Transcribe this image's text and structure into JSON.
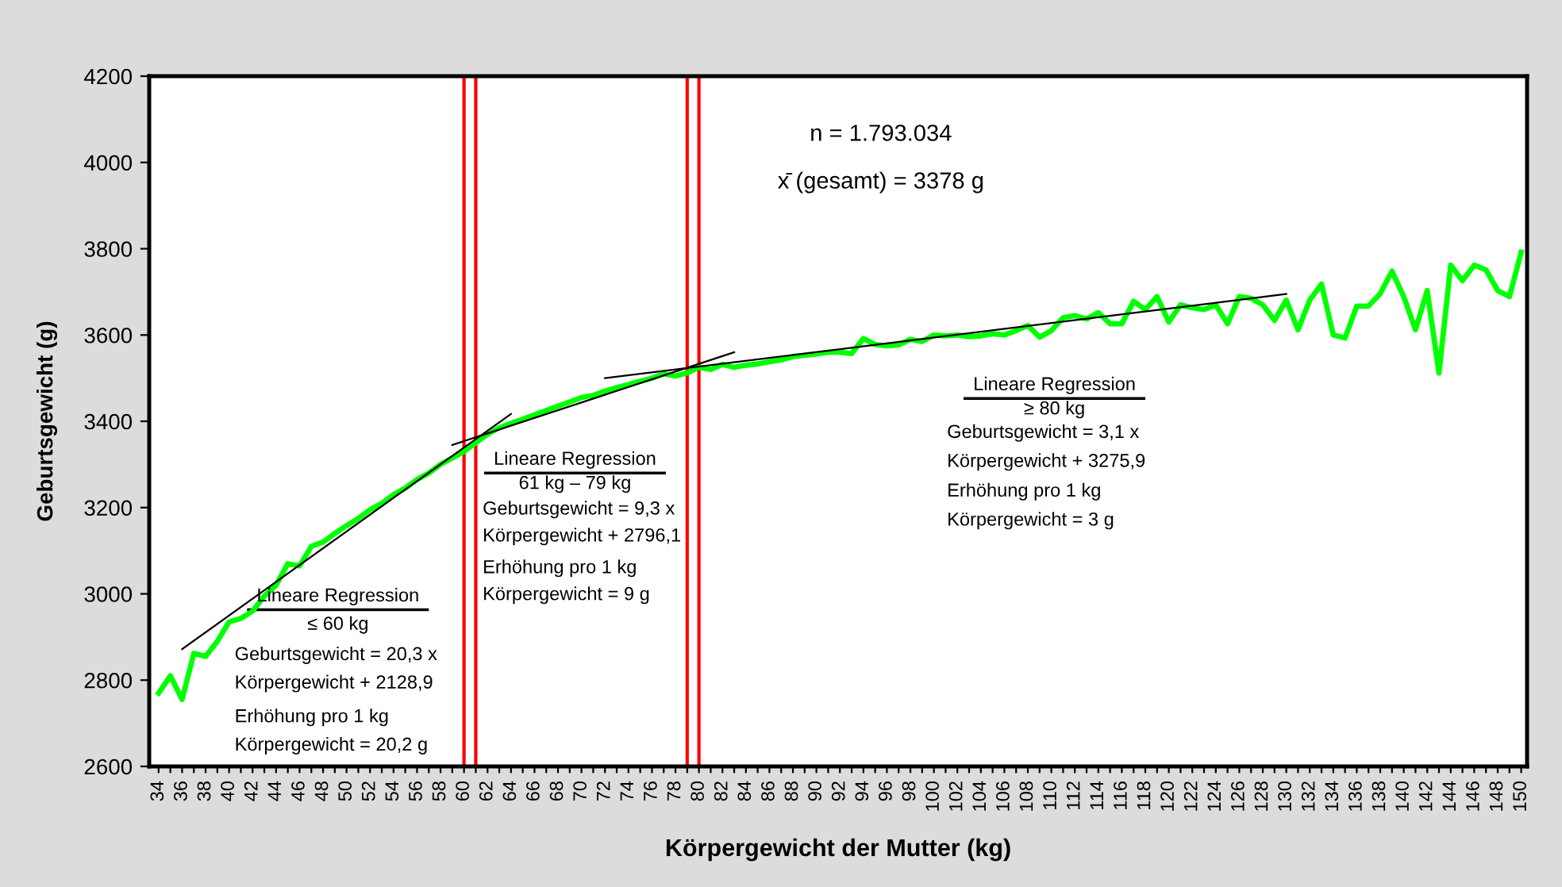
{
  "chart_data": {
    "type": "line",
    "xlabel": "Körpergewicht der Mutter (kg)",
    "ylabel": "Geburtsgewicht (g)",
    "x": [
      34,
      35,
      36,
      37,
      38,
      39,
      40,
      41,
      42,
      43,
      44,
      45,
      46,
      47,
      48,
      49,
      50,
      51,
      52,
      53,
      54,
      55,
      56,
      57,
      58,
      59,
      60,
      61,
      62,
      63,
      64,
      65,
      66,
      67,
      68,
      69,
      70,
      71,
      72,
      73,
      74,
      75,
      76,
      77,
      78,
      79,
      80,
      81,
      82,
      83,
      84,
      85,
      86,
      87,
      88,
      89,
      90,
      91,
      92,
      93,
      94,
      95,
      96,
      97,
      98,
      99,
      100,
      101,
      102,
      103,
      104,
      105,
      106,
      107,
      108,
      109,
      110,
      111,
      112,
      113,
      114,
      115,
      116,
      117,
      118,
      119,
      120,
      121,
      122,
      123,
      124,
      125,
      126,
      127,
      128,
      129,
      130,
      131,
      132,
      133,
      134,
      135,
      136,
      137,
      138,
      139,
      140,
      141,
      142,
      143,
      144,
      145,
      146,
      147,
      148,
      149,
      150
    ],
    "series": [
      {
        "color": "#00ff00",
        "values": [
          2770,
          2810,
          2755,
          2862,
          2855,
          2890,
          2935,
          2943,
          2960,
          2995,
          3020,
          3070,
          3065,
          3110,
          3120,
          3140,
          3158,
          3175,
          3195,
          3210,
          3230,
          3245,
          3265,
          3280,
          3300,
          3315,
          3330,
          3350,
          3370,
          3385,
          3395,
          3405,
          3415,
          3425,
          3435,
          3445,
          3455,
          3460,
          3470,
          3478,
          3485,
          3493,
          3500,
          3510,
          3505,
          3512,
          3525,
          3520,
          3532,
          3525,
          3530,
          3533,
          3538,
          3542,
          3550,
          3553,
          3556,
          3560,
          3560,
          3557,
          3592,
          3578,
          3575,
          3577,
          3590,
          3585,
          3600,
          3598,
          3600,
          3596,
          3598,
          3603,
          3600,
          3610,
          3622,
          3595,
          3610,
          3640,
          3645,
          3637,
          3652,
          3626,
          3626,
          3678,
          3659,
          3689,
          3630,
          3670,
          3663,
          3659,
          3670,
          3626,
          3689,
          3685,
          3670,
          3634,
          3681,
          3612,
          3681,
          3718,
          3600,
          3593,
          3667,
          3667,
          3696,
          3748,
          3689,
          3612,
          3703,
          3512,
          3762,
          3726,
          3762,
          3751,
          3703,
          3689,
          3792
        ]
      },
      {
        "color": "#000000",
        "x": [
          36,
          64
        ],
        "values": [
          2872,
          3417
        ]
      },
      {
        "color": "#000000",
        "x": [
          59,
          83
        ],
        "values": [
          3345,
          3560
        ]
      },
      {
        "color": "#000000",
        "x": [
          72,
          130
        ],
        "values": [
          3500,
          3695
        ]
      }
    ],
    "xlim": [
      33.2,
      150.5
    ],
    "ylim": [
      2600,
      4200
    ],
    "yticks": [
      2600,
      2800,
      3000,
      3200,
      3400,
      3600,
      3800,
      4000,
      4200
    ],
    "xticks": [
      34,
      {
        "value": 35,
        "label": null
      },
      36,
      {
        "value": 37,
        "label": null
      },
      38,
      {
        "value": 39,
        "label": null
      },
      40,
      {
        "value": 41,
        "label": null
      },
      42,
      {
        "value": 43,
        "label": null
      },
      44,
      {
        "value": 45,
        "label": null
      },
      46,
      {
        "value": 47,
        "label": null
      },
      48,
      {
        "value": 49,
        "label": null
      },
      50,
      {
        "value": 51,
        "label": null
      },
      52,
      {
        "value": 53,
        "label": null
      },
      54,
      {
        "value": 55,
        "label": null
      },
      56,
      {
        "value": 57,
        "label": null
      },
      58,
      {
        "value": 59,
        "label": null
      },
      60,
      {
        "value": 61,
        "label": null
      },
      62,
      {
        "value": 63,
        "label": null
      },
      64,
      {
        "value": 65,
        "label": null
      },
      66,
      {
        "value": 67,
        "label": null
      },
      68,
      {
        "value": 69,
        "label": null
      },
      70,
      {
        "value": 71,
        "label": null
      },
      72,
      {
        "value": 73,
        "label": null
      },
      74,
      {
        "value": 75,
        "label": null
      },
      76,
      {
        "value": 77,
        "label": null
      },
      78,
      {
        "value": 79,
        "label": null
      },
      80,
      {
        "value": 81,
        "label": null
      },
      82,
      {
        "value": 83,
        "label": null
      },
      84,
      {
        "value": 85,
        "label": null
      },
      86,
      {
        "value": 87,
        "label": null
      },
      88,
      {
        "value": 89,
        "label": null
      },
      90,
      {
        "value": 91,
        "label": null
      },
      92,
      {
        "value": 93,
        "label": null
      },
      94,
      {
        "value": 95,
        "label": null
      },
      96,
      {
        "value": 97,
        "label": null
      },
      98,
      {
        "value": 99,
        "label": null
      },
      100,
      {
        "value": 101,
        "label": null
      },
      102,
      {
        "value": 103,
        "label": null
      },
      104,
      {
        "value": 105,
        "label": null
      },
      106,
      {
        "value": 107,
        "label": null
      },
      108,
      {
        "value": 109,
        "label": null
      },
      110,
      {
        "value": 111,
        "label": null
      },
      112,
      {
        "value": 113,
        "label": null
      },
      114,
      {
        "value": 115,
        "label": null
      },
      116,
      {
        "value": 117,
        "label": null
      },
      118,
      {
        "value": 119,
        "label": null
      },
      120,
      {
        "value": 121,
        "label": null
      },
      122,
      {
        "value": 123,
        "label": null
      },
      124,
      {
        "value": 125,
        "label": null
      },
      126,
      {
        "value": 127,
        "label": null
      },
      128,
      {
        "value": 129,
        "label": null
      },
      130,
      {
        "value": 131,
        "label": null
      },
      132,
      {
        "value": 133,
        "label": null
      },
      134,
      {
        "value": 135,
        "label": null
      },
      136,
      {
        "value": 137,
        "label": null
      },
      138,
      {
        "value": 139,
        "label": null
      },
      140,
      {
        "value": 141,
        "label": null
      },
      142,
      {
        "value": 143,
        "label": null
      },
      144,
      {
        "value": 145,
        "label": null
      },
      146,
      {
        "value": 147,
        "label": null
      },
      148,
      {
        "value": 149,
        "label": null
      },
      150
    ],
    "ref_lines": [
      {
        "axis": "x",
        "value": 60,
        "color": "#ff0000"
      },
      {
        "axis": "x",
        "value": 61,
        "color": "#ff0000"
      },
      {
        "axis": "x",
        "value": 79,
        "color": "#ff0000"
      },
      {
        "axis": "x",
        "value": 80,
        "color": "#ff0000"
      }
    ],
    "grid": false,
    "legend": false,
    "marker": "none",
    "line_style": "solid",
    "annotations": [
      "n = 1.793.034",
      "x̄ (gesamt) = 3378 g",
      "Lineare Regression",
      "≤ 60 kg",
      "Geburtsgewicht = 20,3 x",
      "Körpergewicht + 2128,9",
      "Erhöhung pro 1 kg",
      "Körpergewicht = 20,2 g",
      "Lineare Regression",
      "61 kg – 79 kg",
      "Geburtsgewicht = 9,3 x",
      "Körpergewicht + 2796,1",
      "Erhöhung pro 1 kg",
      "Körpergewicht = 9 g",
      "Lineare Regression",
      "≥ 80 kg",
      "Geburtsgewicht = 3,1 x",
      "Körpergewicht + 3275,9",
      "Erhöhung pro 1 kg",
      "Körpergewicht = 3 g"
    ]
  }
}
